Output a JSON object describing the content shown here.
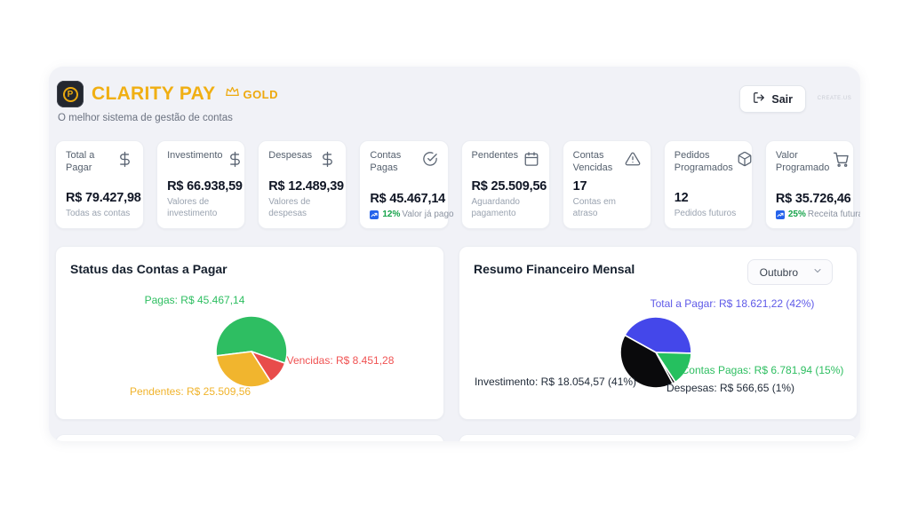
{
  "header": {
    "app_name": "CLARITY PAY",
    "tier": "GOLD",
    "tagline": "O melhor sistema de gestão de contas",
    "logout_label": "Sair",
    "watermark": "CREATE.US",
    "brand_color": "#f0af13"
  },
  "stats": [
    {
      "title": "Total a Pagar",
      "icon": "dollar-icon",
      "value": "R$ 79.427,98",
      "subtitle": "Todas as contas"
    },
    {
      "title": "Investimento",
      "icon": "dollar-icon",
      "value": "R$ 66.938,59",
      "subtitle": "Valores de investimento"
    },
    {
      "title": "Despesas",
      "icon": "dollar-icon",
      "value": "R$ 12.489,39",
      "subtitle": "Valores de despesas"
    },
    {
      "title": "Contas Pagas",
      "icon": "check-circle-icon",
      "value": "R$ 45.467,14",
      "trend": {
        "icon": "trending-up-icon",
        "percent": "12%",
        "text": "Valor já pago"
      }
    },
    {
      "title": "Pendentes",
      "icon": "calendar-icon",
      "value": "R$ 25.509,56",
      "subtitle": "Aguardando pagamento"
    },
    {
      "title": "Contas Vencidas",
      "icon": "warning-triangle-icon",
      "value": "17",
      "subtitle": "Contas em atraso"
    },
    {
      "title": "Pedidos Programados",
      "icon": "package-icon",
      "value": "12",
      "subtitle": "Pedidos futuros"
    },
    {
      "title": "Valor Programado",
      "icon": "cart-icon",
      "value": "R$ 35.726,46",
      "trend": {
        "icon": "trending-up-icon",
        "percent": "25%",
        "text": "Receita futura"
      }
    }
  ],
  "panels": [
    {
      "title": "Status das Contas a Pagar"
    },
    {
      "title": "Resumo Financeiro Mensal",
      "month_selected": "Outubro"
    }
  ],
  "chart_data": [
    {
      "type": "pie",
      "title": "Status das Contas a Pagar",
      "start_angle_deg": 263,
      "slices": [
        {
          "label": "Pagas",
          "display": "Pagas: R$ 45.467,14",
          "value": 45467.14,
          "color": "#2ebe62",
          "label_color": "#2dbe60"
        },
        {
          "label": "Vencidas",
          "display": "Vencidas: R$ 8.451,28",
          "value": 8451.28,
          "color": "#e84c4b",
          "label_color": "#f05252"
        },
        {
          "label": "Pendentes",
          "display": "Pendentes: R$ 25.509,56",
          "value": 25509.56,
          "color": "#f1b52e",
          "label_color": "#f0b32b"
        }
      ]
    },
    {
      "type": "pie",
      "title": "Resumo Financeiro Mensal (Outubro)",
      "start_angle_deg": 299,
      "slices": [
        {
          "label": "Total a Pagar",
          "display": "Total a Pagar: R$ 18.621,22 (42%)",
          "value": 18621.22,
          "percent": 42,
          "color": "#4447ea",
          "label_color": "#5f5ae8"
        },
        {
          "label": "Contas Pagas",
          "display": "Contas Pagas: R$ 6.781,94 (15%)",
          "value": 6781.94,
          "percent": 15,
          "color": "#25c05f",
          "label_color": "#2dbe60"
        },
        {
          "label": "Despesas",
          "display": "Despesas: R$ 566,65 (1%)",
          "value": 566.65,
          "percent": 1,
          "color": "#16161a",
          "label_color": "#1f2937"
        },
        {
          "label": "Investimento",
          "display": "Investimento: R$ 18.054,57 (41%)",
          "value": 18054.57,
          "percent": 41,
          "color": "#0a0a0c",
          "label_color": "#1f2937"
        }
      ]
    }
  ]
}
